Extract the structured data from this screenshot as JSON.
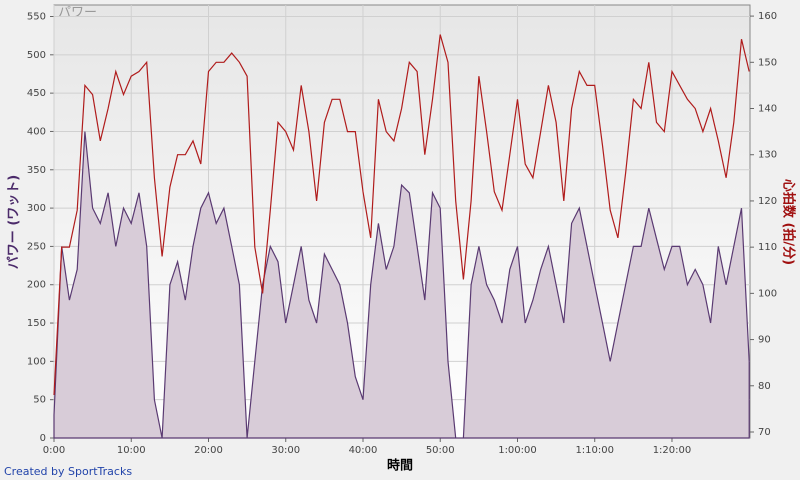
{
  "chart_data": {
    "type": "line-area",
    "title": "パワー",
    "xlabel": "時間",
    "ylabel": "パワー (ワット)",
    "y2label": "心拍数 (拍/分)",
    "footer": "Created by SportTracks",
    "x": [
      0,
      1,
      2,
      3,
      4,
      5,
      6,
      7,
      8,
      9,
      10,
      11,
      12,
      13,
      14,
      15,
      16,
      17,
      18,
      19,
      20,
      21,
      22,
      23,
      24,
      25,
      26,
      27,
      28,
      29,
      30,
      31,
      32,
      33,
      34,
      35,
      36,
      37,
      38,
      39,
      40,
      41,
      42,
      43,
      44,
      45,
      46,
      47,
      48,
      49,
      50,
      51,
      52,
      53,
      54,
      55,
      56,
      57,
      58,
      59,
      60,
      61,
      62,
      63,
      64,
      65,
      66,
      67,
      68,
      69,
      70,
      71,
      72,
      73,
      74,
      75,
      76,
      77,
      78,
      79,
      80,
      81,
      82,
      83,
      84,
      85,
      86,
      87,
      88,
      89,
      90
    ],
    "series": [
      {
        "name": "パワー",
        "color": "#5a3a72",
        "fill": "#d8ccd8",
        "axis": "y",
        "values": [
          30,
          250,
          180,
          220,
          400,
          300,
          280,
          320,
          250,
          300,
          280,
          320,
          250,
          50,
          0,
          200,
          230,
          180,
          250,
          300,
          320,
          280,
          300,
          250,
          200,
          0,
          100,
          200,
          250,
          230,
          150,
          200,
          250,
          180,
          150,
          240,
          220,
          200,
          150,
          80,
          50,
          200,
          280,
          220,
          250,
          330,
          320,
          250,
          180,
          320,
          300,
          100,
          0,
          0,
          200,
          250,
          200,
          180,
          150,
          220,
          250,
          150,
          180,
          220,
          250,
          200,
          150,
          280,
          300,
          250,
          200,
          150,
          100,
          150,
          200,
          250,
          250,
          300,
          260,
          220,
          250,
          250,
          200,
          220,
          200,
          150,
          250,
          200,
          250,
          300,
          100
        ]
      },
      {
        "name": "心拍数",
        "color": "#b01c1c",
        "axis": "y2",
        "values": [
          78,
          110,
          110,
          118,
          145,
          143,
          133,
          140,
          148,
          143,
          147,
          148,
          150,
          125,
          108,
          123,
          130,
          130,
          133,
          128,
          148,
          150,
          150,
          152,
          150,
          147,
          110,
          100,
          118,
          137,
          135,
          131,
          145,
          135,
          120,
          137,
          142,
          142,
          135,
          135,
          122,
          112,
          142,
          135,
          133,
          140,
          150,
          148,
          130,
          142,
          156,
          150,
          120,
          103,
          120,
          147,
          135,
          122,
          118,
          130,
          142,
          128,
          125,
          135,
          145,
          137,
          120,
          140,
          148,
          145,
          145,
          132,
          118,
          112,
          126,
          142,
          140,
          150,
          137,
          135,
          148,
          145,
          142,
          140,
          135,
          140,
          133,
          125,
          137,
          155,
          148
        ]
      }
    ],
    "xlim": [
      0,
      90.1
    ],
    "xticks": [
      {
        "value": 0,
        "label": "0:00"
      },
      {
        "value": 10,
        "label": "10:00"
      },
      {
        "value": 20,
        "label": "20:00"
      },
      {
        "value": 30,
        "label": "30:00"
      },
      {
        "value": 40,
        "label": "40:00"
      },
      {
        "value": 50,
        "label": "50:00"
      },
      {
        "value": 60,
        "label": "1:00:00"
      },
      {
        "value": 70,
        "label": "1:10:00"
      },
      {
        "value": 80,
        "label": "1:20:00"
      }
    ],
    "ylim": [
      0,
      565
    ],
    "yticks": [
      0,
      50,
      100,
      150,
      200,
      250,
      300,
      350,
      400,
      450,
      500,
      550
    ],
    "y2lim": [
      68.7,
      162.4
    ],
    "y2ticks": [
      70,
      80,
      90,
      100,
      110,
      120,
      130,
      140,
      150,
      160
    ],
    "grid": true
  }
}
